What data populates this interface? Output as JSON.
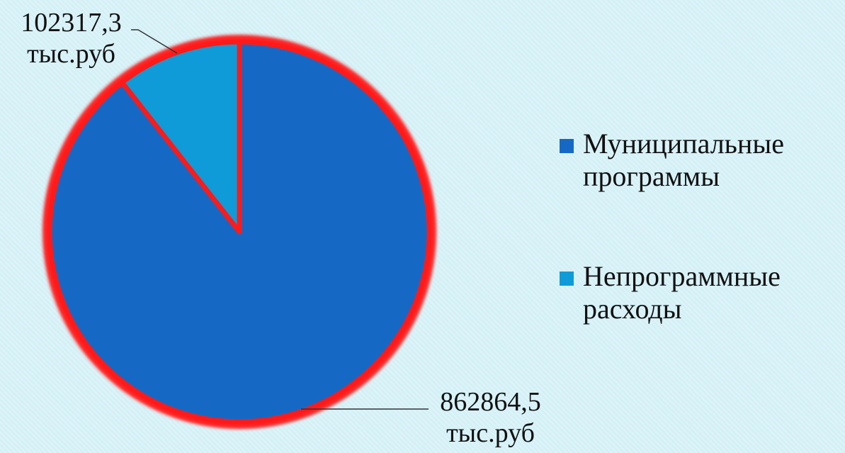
{
  "chart_data": {
    "type": "pie",
    "categories": [
      "Муниципальные программы",
      "Непрограммные расходы"
    ],
    "values": [
      862864.5,
      102317.3
    ],
    "value_labels": [
      "862864,5 тыс.руб",
      "102317,3 тыс.руб"
    ],
    "colors": [
      "#1569c5",
      "#0e9bd7"
    ],
    "legend": "right"
  }
}
